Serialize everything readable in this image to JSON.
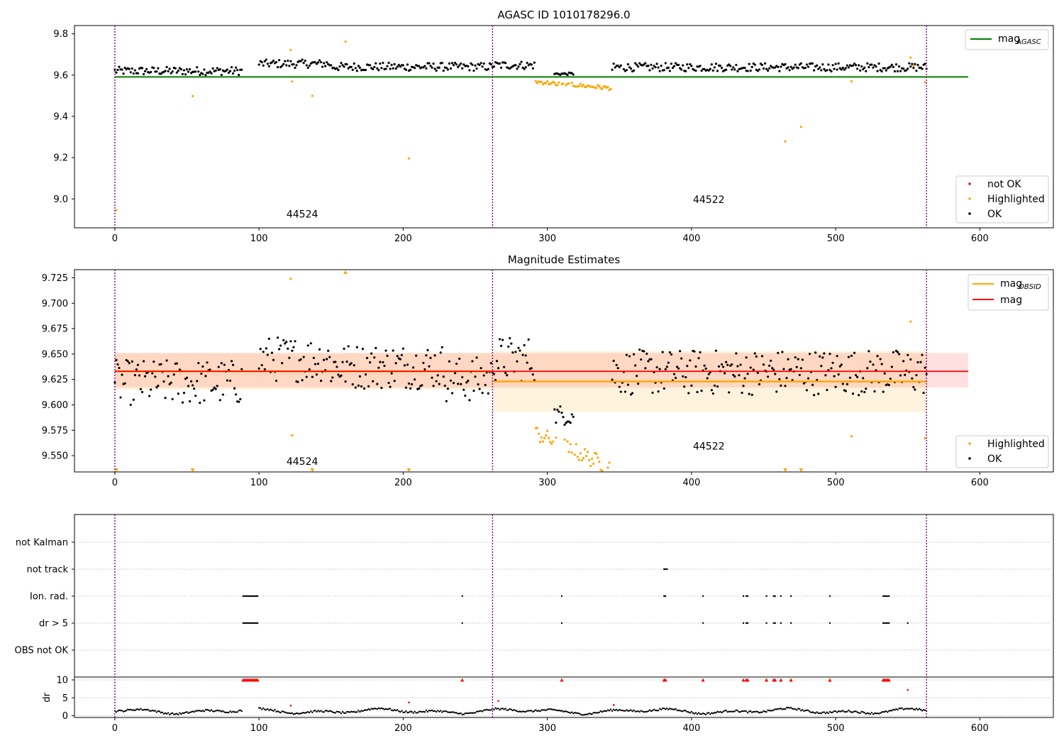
{
  "chart_data": [
    {
      "type": "scatter",
      "title": "AGASC ID 1010178296.0",
      "xlim": [
        -28,
        651
      ],
      "ylim": [
        8.86,
        9.84
      ],
      "xticks": [
        "0",
        "100",
        "200",
        "300",
        "400",
        "500",
        "600"
      ],
      "yticks": [
        "9.0",
        "9.2",
        "9.4",
        "9.6",
        "9.8"
      ],
      "obs_labels": [
        {
          "text": "44524",
          "x": 130,
          "y": 8.91
        },
        {
          "text": "44522",
          "x": 412,
          "y": 8.98
        }
      ],
      "reference_line": {
        "label": "mag",
        "subscript": "AGASC",
        "y": 9.591,
        "x_range": [
          0,
          592
        ],
        "color": "#008000"
      },
      "obs_boundaries": [
        0,
        262,
        563
      ],
      "highlighted_points": [
        [
          1,
          8.945
        ],
        [
          54,
          9.498
        ],
        [
          122,
          9.722
        ],
        [
          123,
          9.569
        ],
        [
          137,
          9.499
        ],
        [
          160,
          9.762
        ],
        [
          204,
          9.196
        ],
        [
          465,
          9.279
        ],
        [
          476,
          9.349
        ],
        [
          511,
          9.57
        ],
        [
          552,
          9.685
        ],
        [
          554,
          9.645
        ],
        [
          562,
          9.565
        ]
      ],
      "legend_points": [
        "not OK",
        "Highlighted",
        "OK"
      ],
      "colors": {
        "ok": "#000000",
        "highlighted": "#ffa500",
        "not_ok": "#ff0000"
      }
    },
    {
      "type": "scatter",
      "title": "Magnitude Estimates",
      "xlim": [
        -28,
        651
      ],
      "ylim": [
        9.534,
        9.733
      ],
      "xticks": [
        "0",
        "100",
        "200",
        "300",
        "400",
        "500",
        "600"
      ],
      "yticks": [
        "9.550",
        "9.575",
        "9.600",
        "9.625",
        "9.650",
        "9.675",
        "9.700",
        "9.725"
      ],
      "obs_labels": [
        {
          "text": "44524",
          "x": 130,
          "y": 9.541
        },
        {
          "text": "44522",
          "x": 412,
          "y": 9.556
        }
      ],
      "mag_line": {
        "label": "mag",
        "y": 9.633,
        "band": [
          9.617,
          9.651
        ],
        "x_range": [
          0,
          592
        ],
        "color": "#ff0000"
      },
      "mag_obsid": [
        {
          "label": "mag",
          "subscript": "OBSID",
          "y": 9.633,
          "band": [
            9.615,
            9.651
          ],
          "x_range": [
            0,
            262
          ]
        },
        {
          "label": "mag",
          "subscript": "OBSID",
          "y": 9.623,
          "band": [
            9.593,
            9.653
          ],
          "x_range": [
            262,
            563
          ]
        }
      ],
      "highlighted_points": [
        [
          122,
          9.724
        ],
        [
          123,
          9.57
        ],
        [
          511,
          9.569
        ],
        [
          552,
          9.682
        ],
        [
          562,
          9.567
        ]
      ],
      "off_scale_markers": [
        [
          1,
          "down"
        ],
        [
          54,
          "down"
        ],
        [
          137,
          "down"
        ],
        [
          160,
          "up"
        ],
        [
          204,
          "down"
        ],
        [
          465,
          "down"
        ],
        [
          476,
          "down"
        ]
      ],
      "legend_points": [
        "Highlighted",
        "OK"
      ],
      "colors": {
        "ok": "#000000",
        "highlighted": "#ffa500"
      }
    },
    {
      "type": "scatter",
      "xlim": [
        -28,
        651
      ],
      "categories": [
        "not Kalman",
        "not track",
        "Ion. rad.",
        "dr > 5",
        "OBS not OK"
      ],
      "flag_points": {
        "not track": [
          381,
          382,
          383
        ],
        "Ion. rad.": [
          89,
          90,
          91,
          92,
          93,
          94,
          95,
          96,
          97,
          98,
          99,
          241,
          310,
          381,
          382,
          408,
          436,
          438,
          439,
          452,
          457,
          458,
          462,
          469,
          496,
          533,
          534,
          535,
          536,
          537
        ],
        "dr > 5": [
          89,
          90,
          91,
          92,
          93,
          94,
          95,
          96,
          97,
          98,
          99,
          241,
          310,
          408,
          436,
          438,
          439,
          452,
          457,
          458,
          462,
          469,
          496,
          533,
          534,
          535,
          536,
          537,
          550
        ]
      },
      "obs_boundaries": [
        0,
        262,
        563
      ]
    },
    {
      "type": "scatter",
      "ylabel": "dr",
      "xlim": [
        -28,
        651
      ],
      "ylim": [
        -0.5,
        10.8
      ],
      "xticks": [
        "0",
        "100",
        "200",
        "300",
        "400",
        "500",
        "600"
      ],
      "yticks": [
        "0",
        "5",
        "10"
      ],
      "clipped_at": 10,
      "clipped_points": [
        89,
        90,
        91,
        92,
        93,
        94,
        95,
        96,
        97,
        98,
        99,
        241,
        310,
        381,
        382,
        408,
        436,
        438,
        439,
        452,
        457,
        458,
        462,
        469,
        496,
        533,
        534,
        535,
        536,
        537
      ],
      "red_points": [
        [
          122,
          2.8
        ],
        [
          204,
          3.7
        ],
        [
          266,
          4.1
        ],
        [
          346,
          3.0
        ],
        [
          550,
          7.2
        ]
      ],
      "obs_boundaries": [
        0,
        262,
        563
      ]
    }
  ]
}
